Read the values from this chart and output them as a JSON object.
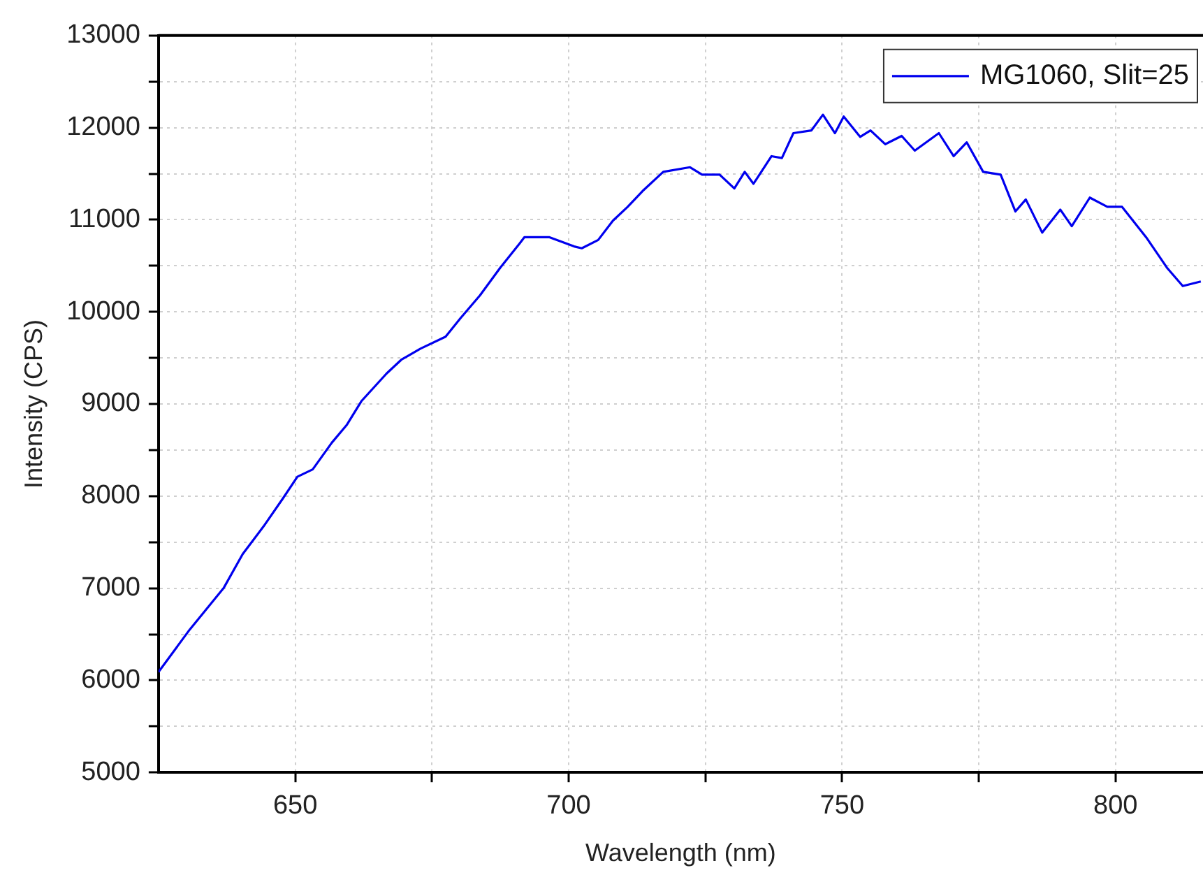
{
  "chart_data": {
    "type": "line",
    "xlabel": "Wavelength (nm)",
    "ylabel": "Intensity (CPS)",
    "xlim": [
      625,
      816
    ],
    "ylim": [
      5000,
      13000
    ],
    "xticks": [
      650,
      {
        "value": 675,
        "label": null
      },
      700,
      {
        "value": 725,
        "label": null
      },
      750,
      {
        "value": 775,
        "label": null
      },
      800
    ],
    "yticks": [
      5000,
      {
        "value": 5500,
        "label": null
      },
      6000,
      {
        "value": 6500,
        "label": null
      },
      7000,
      {
        "value": 7500,
        "label": null
      },
      8000,
      {
        "value": 8500,
        "label": null
      },
      9000,
      {
        "value": 9500,
        "label": null
      },
      10000,
      {
        "value": 10500,
        "label": null
      },
      11000,
      {
        "value": 11500,
        "label": null
      },
      12000,
      {
        "value": 12500,
        "label": null
      },
      13000
    ],
    "grid": true,
    "legend": "top right",
    "marker": "none",
    "line_style": "solid",
    "series": [
      {
        "name": "MG1060, Slit=25",
        "color": "#0000ee",
        "x": [
          625,
          630.7,
          636.9,
          640.4,
          644.2,
          647.7,
          650.4,
          653.2,
          656.7,
          659.4,
          662.1,
          666.7,
          669.4,
          672.9,
          677.5,
          680.2,
          683.8,
          687.5,
          691,
          691.9,
          696.5,
          701,
          702.4,
          705.4,
          708.1,
          710.8,
          713.5,
          717.3,
          722.2,
          724.4,
          727.6,
          730.3,
          732.2,
          733.8,
          737.1,
          739,
          741.1,
          744.4,
          746.5,
          748.7,
          750.3,
          753.3,
          755.2,
          757.9,
          760.9,
          763.3,
          767.7,
          770.4,
          772.8,
          775.8,
          779,
          781.7,
          783.6,
          786.6,
          789.9,
          792,
          795.3,
          798.5,
          801.2,
          805.6,
          809.4,
          812.3,
          815.6
        ],
        "values": [
          6090,
          6550,
          7000,
          7370,
          7670,
          7970,
          8210,
          8290,
          8580,
          8770,
          9030,
          9330,
          9480,
          9600,
          9730,
          9930,
          10180,
          10480,
          10740,
          10810,
          10810,
          10710,
          10690,
          10780,
          10990,
          11140,
          11310,
          11520,
          11570,
          11490,
          11490,
          11340,
          11520,
          11390,
          11690,
          11670,
          11940,
          11970,
          12140,
          11940,
          12120,
          11900,
          11970,
          11820,
          11910,
          11750,
          11940,
          11690,
          11840,
          11520,
          11490,
          11090,
          11220,
          10860,
          11110,
          10930,
          11240,
          11140,
          11140,
          10810,
          10480,
          10280,
          10330
        ]
      }
    ]
  }
}
